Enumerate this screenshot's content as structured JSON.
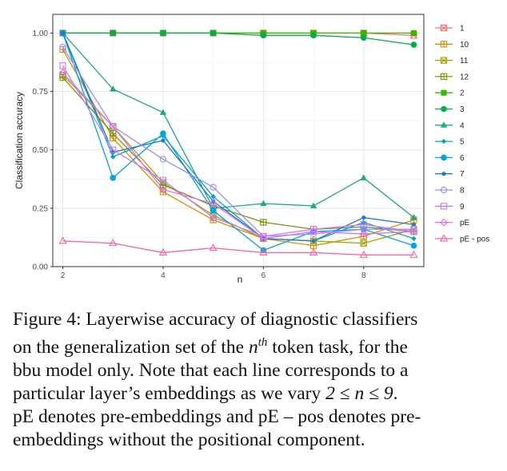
{
  "chart_data": {
    "type": "line",
    "xlabel": "n",
    "ylabel": "Classification accuracy",
    "xlim": [
      1.8,
      9.2
    ],
    "ylim": [
      0,
      1.08
    ],
    "xticks": [
      2,
      4,
      6,
      8
    ],
    "yticks": [
      0.0,
      0.25,
      0.5,
      0.75,
      1.0
    ],
    "ytick_labels": [
      "0.00",
      "0.25",
      "0.50",
      "0.75",
      "1.00"
    ],
    "grid": true,
    "legend_position": "right",
    "x": [
      2,
      3,
      4,
      5,
      6,
      7,
      8,
      9
    ],
    "series": [
      {
        "name": "1",
        "color": "#F8766D",
        "marker": "square-x",
        "values": [
          1.0,
          1.0,
          1.0,
          1.0,
          1.0,
          1.0,
          1.0,
          0.99
        ]
      },
      {
        "name": "10",
        "color": "#D89000",
        "marker": "square-plus",
        "values": [
          0.93,
          0.55,
          0.32,
          0.2,
          0.12,
          0.09,
          0.13,
          0.2
        ]
      },
      {
        "name": "11",
        "color": "#A3A500",
        "marker": "square-x",
        "values": [
          0.82,
          0.6,
          0.36,
          0.22,
          0.12,
          0.11,
          0.1,
          0.16
        ]
      },
      {
        "name": "12",
        "color": "#7C9400",
        "marker": "square-plus",
        "values": [
          0.81,
          0.57,
          0.35,
          0.26,
          0.19,
          0.16,
          0.17,
          0.15
        ]
      },
      {
        "name": "2",
        "color": "#39B600",
        "marker": "square",
        "values": [
          1.0,
          1.0,
          1.0,
          1.0,
          1.0,
          1.0,
          1.0,
          1.0
        ]
      },
      {
        "name": "3",
        "color": "#00AE4A",
        "marker": "circle",
        "values": [
          1.0,
          1.0,
          1.0,
          1.0,
          0.99,
          0.99,
          0.98,
          0.95
        ]
      },
      {
        "name": "4",
        "color": "#1AAA84",
        "marker": "triangle",
        "values": [
          1.0,
          0.76,
          0.66,
          0.25,
          0.27,
          0.26,
          0.38,
          0.21
        ]
      },
      {
        "name": "5",
        "color": "#00A9B5",
        "marker": "diamond",
        "values": [
          1.0,
          0.47,
          0.56,
          0.3,
          0.12,
          0.11,
          0.19,
          0.12
        ]
      },
      {
        "name": "6",
        "color": "#00A5E3",
        "marker": "circle",
        "values": [
          1.0,
          0.38,
          0.57,
          0.24,
          0.07,
          0.15,
          0.16,
          0.09
        ]
      },
      {
        "name": "7",
        "color": "#1F77D4",
        "marker": "circle-small",
        "values": [
          1.0,
          0.49,
          0.54,
          0.28,
          0.12,
          0.11,
          0.21,
          0.18
        ]
      },
      {
        "name": "8",
        "color": "#9590FF",
        "marker": "circle-open",
        "values": [
          0.94,
          0.6,
          0.46,
          0.34,
          0.13,
          0.14,
          0.16,
          0.16
        ]
      },
      {
        "name": "9",
        "color": "#C77CFF",
        "marker": "square-open",
        "values": [
          0.86,
          0.5,
          0.37,
          0.21,
          0.13,
          0.16,
          0.18,
          0.15
        ]
      },
      {
        "name": "pE",
        "color": "#E76BF3",
        "marker": "diamond-open",
        "values": [
          0.83,
          0.6,
          0.33,
          0.27,
          0.12,
          0.15,
          0.14,
          0.15
        ]
      },
      {
        "name": "pE - pos",
        "color": "#F464A4",
        "marker": "triangle-open",
        "values": [
          0.11,
          0.1,
          0.06,
          0.08,
          0.06,
          0.06,
          0.05,
          0.05
        ]
      }
    ]
  },
  "caption": {
    "line1": "Figure 4:  Layerwise accuracy of diagnostic classifiers",
    "line2_pre": "on the generalization set of the ",
    "line2_var": "n",
    "line2_sup": "th",
    "line2_post": " token task, for the",
    "line3": "bbu model only.  Note that each line corresponds to a",
    "line4_pre": "particular layer’s embeddings as we vary ",
    "line4_math": "2 ≤ n ≤ 9",
    "line4_post": ".",
    "line5": "pE denotes pre-embeddings and pE – pos denotes pre-",
    "line6": "embeddings without the positional component."
  }
}
